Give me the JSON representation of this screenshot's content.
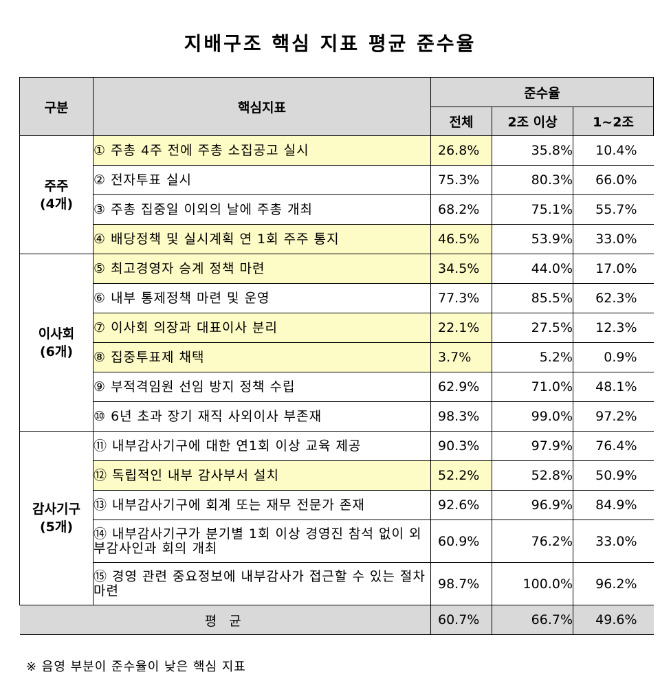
{
  "title": "지배구조 핵심 지표 평균 준수율",
  "headers": {
    "category": "구분",
    "indicator": "핵심지표",
    "compliance": "준수율",
    "total": "전체",
    "over2t": "2조 이상",
    "range": "1~2조"
  },
  "groups": [
    {
      "name": "주주",
      "count": "(4개)",
      "rows": [
        {
          "label": "① 주총 4주 전에 주총 소집공고 실시",
          "total": "26.8%",
          "over2t": "35.8%",
          "range": "10.4%",
          "highlight": true
        },
        {
          "label": "② 전자투표 실시",
          "total": "75.3%",
          "over2t": "80.3%",
          "range": "66.0%",
          "highlight": false
        },
        {
          "label": "③ 주총 집중일 이외의 날에 주총 개최",
          "total": "68.2%",
          "over2t": "75.1%",
          "range": "55.7%",
          "highlight": false
        },
        {
          "label": "④ 배당정책 및 실시계획 연 1회 주주 통지",
          "total": "46.5%",
          "over2t": "53.9%",
          "range": "33.0%",
          "highlight": true
        }
      ]
    },
    {
      "name": "이사회",
      "count": "(6개)",
      "rows": [
        {
          "label": "⑤ 최고경영자 승계 정책 마련",
          "total": "34.5%",
          "over2t": "44.0%",
          "range": "17.0%",
          "highlight": true
        },
        {
          "label": "⑥ 내부 통제정책 마련 및 운영",
          "total": "77.3%",
          "over2t": "85.5%",
          "range": "62.3%",
          "highlight": false
        },
        {
          "label": "⑦ 이사회 의장과 대표이사 분리",
          "total": "22.1%",
          "over2t": "27.5%",
          "range": "12.3%",
          "highlight": true
        },
        {
          "label": "⑧ 집중투표제 채택",
          "total": "3.7%",
          "over2t": "5.2%",
          "range": "0.9%",
          "highlight": true
        },
        {
          "label": "⑨ 부적격임원 선임 방지 정책 수립",
          "total": "62.9%",
          "over2t": "71.0%",
          "range": "48.1%",
          "highlight": false
        },
        {
          "label": "⑩ 6년 초과 장기 재직 사외이사 부존재",
          "total": "98.3%",
          "over2t": "99.0%",
          "range": "97.2%",
          "highlight": false
        }
      ]
    },
    {
      "name": "감사기구",
      "count": "(5개)",
      "rows": [
        {
          "label": "⑪ 내부감사기구에 대한 연1회 이상 교육 제공",
          "total": "90.3%",
          "over2t": "97.9%",
          "range": "76.4%",
          "highlight": false
        },
        {
          "label": "⑫ 독립적인 내부 감사부서 설치",
          "total": "52.2%",
          "over2t": "52.8%",
          "range": "50.9%",
          "highlight": true
        },
        {
          "label": "⑬ 내부감사기구에 회계 또는 재무 전문가 존재",
          "total": "92.6%",
          "over2t": "96.9%",
          "range": "84.9%",
          "highlight": false
        },
        {
          "label": "⑭ 내부감사기구가 분기별 1회 이상 경영진 참석 없이 외부감사인과 회의 개최",
          "total": "60.9%",
          "over2t": "76.2%",
          "range": "33.0%",
          "highlight": false
        },
        {
          "label": "⑮ 경영 관련 중요정보에 내부감사가 접근할 수 있는 절차 마련",
          "total": "98.7%",
          "over2t": "100.0%",
          "range": "96.2%",
          "highlight": false
        }
      ]
    }
  ],
  "average": {
    "label": "평 균",
    "total": "60.7%",
    "over2t": "66.7%",
    "range": "49.6%"
  },
  "note": "※ 음영 부분이 준수율이 낮은 핵심 지표"
}
